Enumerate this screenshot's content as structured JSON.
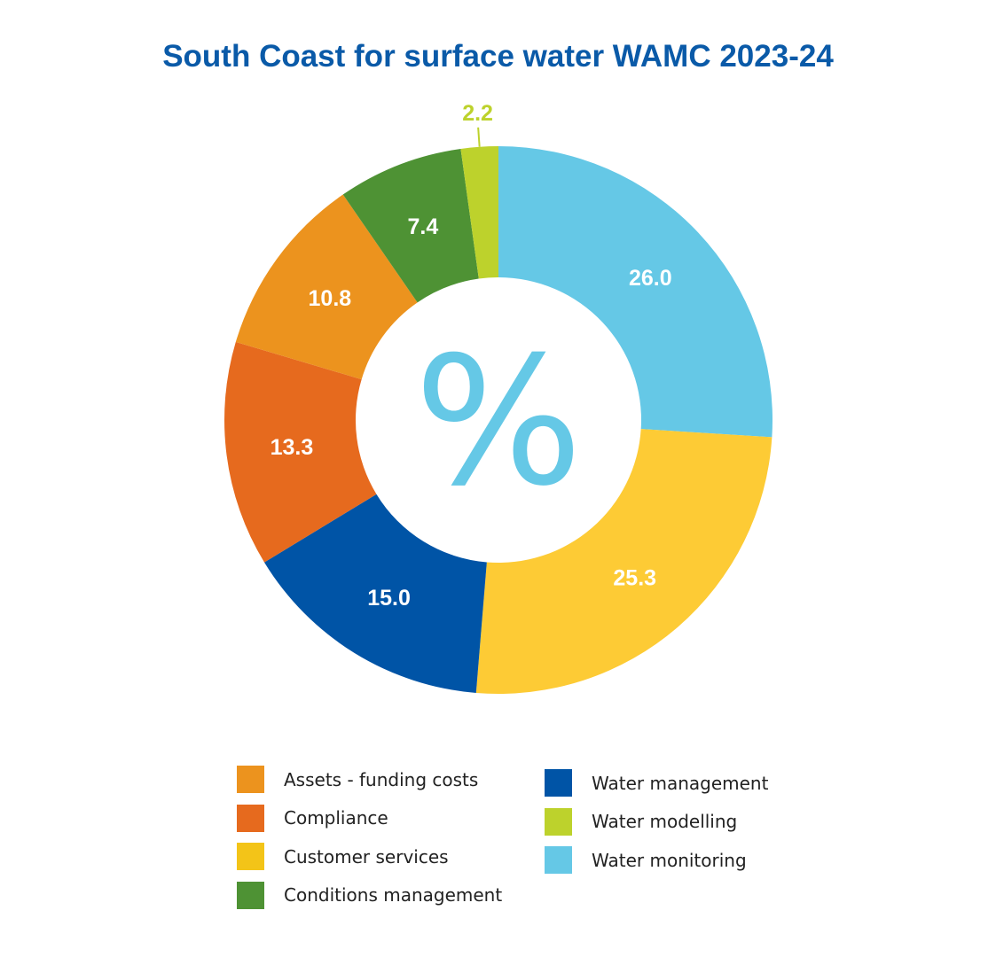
{
  "chart_data": {
    "type": "pie",
    "variant": "donut",
    "title": "South Coast for surface water WAMC 2023-24",
    "unit_symbol": "%",
    "legend_position": "bottom",
    "slices": [
      {
        "name": "Water monitoring",
        "value": 26.0,
        "label": "26.0",
        "color": "#65c8e6"
      },
      {
        "name": "Customer services",
        "value": 25.3,
        "label": "25.3",
        "color": "#fdcb35"
      },
      {
        "name": "Water management",
        "value": 15.0,
        "label": "15.0",
        "color": "#0054a6"
      },
      {
        "name": "Compliance",
        "value": 13.3,
        "label": "13.3",
        "color": "#e66a1e"
      },
      {
        "name": "Assets - funding costs",
        "value": 10.8,
        "label": "10.8",
        "color": "#ec931e"
      },
      {
        "name": "Conditions management",
        "value": 7.4,
        "label": "7.4",
        "color": "#4e9234"
      },
      {
        "name": "Water modelling",
        "value": 2.2,
        "label": "2.2",
        "color": "#bdd22c"
      }
    ]
  },
  "legend": {
    "left": [
      {
        "label": "Assets - funding costs",
        "color": "#ec931e"
      },
      {
        "label": "Compliance",
        "color": "#e66a1e"
      },
      {
        "label": "Customer services",
        "color": "#f3c418"
      },
      {
        "label": "Conditions management",
        "color": "#4e9234"
      }
    ],
    "right": [
      {
        "label": "Water management",
        "color": "#0054a6"
      },
      {
        "label": "Water modelling",
        "color": "#bdd22c"
      },
      {
        "label": "Water monitoring",
        "color": "#65c8e6"
      }
    ]
  },
  "colors": {
    "title": "#0a5aa8",
    "percent_icon": "#65c8e6",
    "outside_label": "#bdd22c"
  },
  "icons": {
    "center": "percent-icon"
  }
}
